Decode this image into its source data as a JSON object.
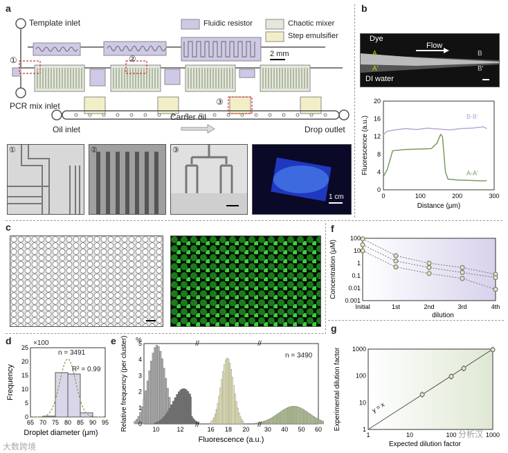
{
  "panels": {
    "a": "a",
    "b": "b",
    "c": "c",
    "d": "d",
    "e": "e",
    "f": "f",
    "g": "g"
  },
  "panel_a": {
    "template_inlet": "Template inlet",
    "pcr_inlet": "PCR mix inlet",
    "oil_inlet": "Oil inlet",
    "carrier_oil": "Carrier oil",
    "drop_outlet": "Drop outlet",
    "scale": "2 mm",
    "legend": [
      "Fluidic resistor",
      "Chaotic mixer",
      "Step emulsifier"
    ],
    "legend_colors": [
      "#cfc8e6",
      "#e4e8dc",
      "#f2efc8"
    ],
    "markers": [
      "①",
      "②",
      "③"
    ],
    "inset_scale": "1 cm"
  },
  "panel_b": {
    "dye": "Dye",
    "flow": "Flow",
    "di_water": "DI water",
    "a": "A",
    "a_prime": "A'",
    "b": "B",
    "b_prime": "B'"
  },
  "chart_b": {
    "type": "line",
    "xlabel": "Distance (μm)",
    "ylabel": "Fluorescence (a.u.)",
    "xlim": [
      0,
      300
    ],
    "ylim": [
      0,
      20
    ],
    "xticks": [
      0,
      100,
      200,
      300
    ],
    "yticks": [
      0,
      4,
      8,
      12,
      16,
      20
    ],
    "series": [
      {
        "name": "B-B'",
        "color": "#b9a6d8",
        "x": [
          0,
          10,
          30,
          60,
          90,
          120,
          150,
          180,
          210,
          240,
          270,
          280
        ],
        "values": [
          12.4,
          13.2,
          13.5,
          13.8,
          13.6,
          13.9,
          13.7,
          13.5,
          13.8,
          13.9,
          14.2,
          13.8
        ]
      },
      {
        "name": "A-A'",
        "color": "#7a9a5e",
        "x": [
          0,
          10,
          25,
          60,
          100,
          130,
          145,
          155,
          160,
          168,
          175,
          200,
          240,
          270,
          280
        ],
        "values": [
          3,
          4.5,
          8.8,
          9.1,
          9.2,
          9.3,
          10.5,
          12.5,
          12.0,
          4.0,
          2.4,
          2.2,
          2.1,
          2.0,
          2.1
        ]
      }
    ]
  },
  "panel_d": {
    "multiplier": "×100",
    "n": "n = 3491",
    "r2": "R² = 0.99"
  },
  "chart_d": {
    "type": "bar",
    "xlabel": "Droplet diameter (μm)",
    "ylabel": "Frequency",
    "xlim": [
      65,
      95
    ],
    "ylim": [
      0,
      25
    ],
    "xticks": [
      65,
      70,
      75,
      80,
      85,
      90,
      95
    ],
    "yticks": [
      0,
      5,
      10,
      15,
      20,
      25
    ],
    "bins": [
      72.5,
      77.5,
      82.5,
      87.5
    ],
    "values": [
      0.3,
      16,
      15.5,
      1.5
    ]
  },
  "panel_e": {
    "percent": "%",
    "n": "n = 3490"
  },
  "chart_e": {
    "type": "bar",
    "xlabel": "Fluorescence (a.u.)",
    "ylabel": "Relative frequency (per cluster)",
    "ylim": [
      0,
      5
    ],
    "yticks": [
      0,
      1,
      2,
      3,
      4,
      5
    ],
    "xticks": [
      "10",
      "12",
      "16",
      "18",
      "20",
      "30",
      "40",
      "50",
      "60"
    ],
    "clusters": [
      {
        "center": 10,
        "peak": 4.9,
        "color": "#aaaaaa"
      },
      {
        "center": 12.2,
        "peak": 2.2,
        "color": "#707070"
      },
      {
        "center": 17.8,
        "peak": 4.1,
        "color": "#eeeec0"
      },
      {
        "center": 45,
        "peak": 1.1,
        "color": "#b9c99a"
      }
    ]
  },
  "chart_f": {
    "type": "line",
    "ylabel": "Concentration (μM)",
    "xlabel": "dilution",
    "categories": [
      "Initial",
      "1st",
      "2nd",
      "3rd",
      "4th"
    ],
    "yticks": [
      "100",
      "10",
      "1",
      "0.1",
      "0.01",
      "0.001"
    ],
    "ylim": [
      0.001,
      100
    ],
    "scale": "log",
    "series": [
      {
        "values": [
          90,
          4,
          1.0,
          0.45,
          0.13
        ]
      },
      {
        "values": [
          30,
          1.5,
          0.45,
          0.18,
          0.07
        ]
      },
      {
        "values": [
          10,
          0.5,
          0.15,
          0.06,
          0.008
        ]
      }
    ]
  },
  "chart_g": {
    "type": "scatter",
    "xlabel": "Expected dilution factor",
    "ylabel": "Experimental dilution factor",
    "annotation": "y = x",
    "scale": "log",
    "xlim": [
      1,
      1000
    ],
    "ylim": [
      1,
      1000
    ],
    "xticks": [
      "1",
      "10",
      "100",
      "1000"
    ],
    "yticks": [
      "1",
      "10",
      "100",
      "1000"
    ],
    "x": [
      20,
      100,
      200,
      1000
    ],
    "values": [
      20,
      95,
      190,
      950
    ]
  },
  "watermarks": [
    "大数跨境",
    "分析汉"
  ]
}
